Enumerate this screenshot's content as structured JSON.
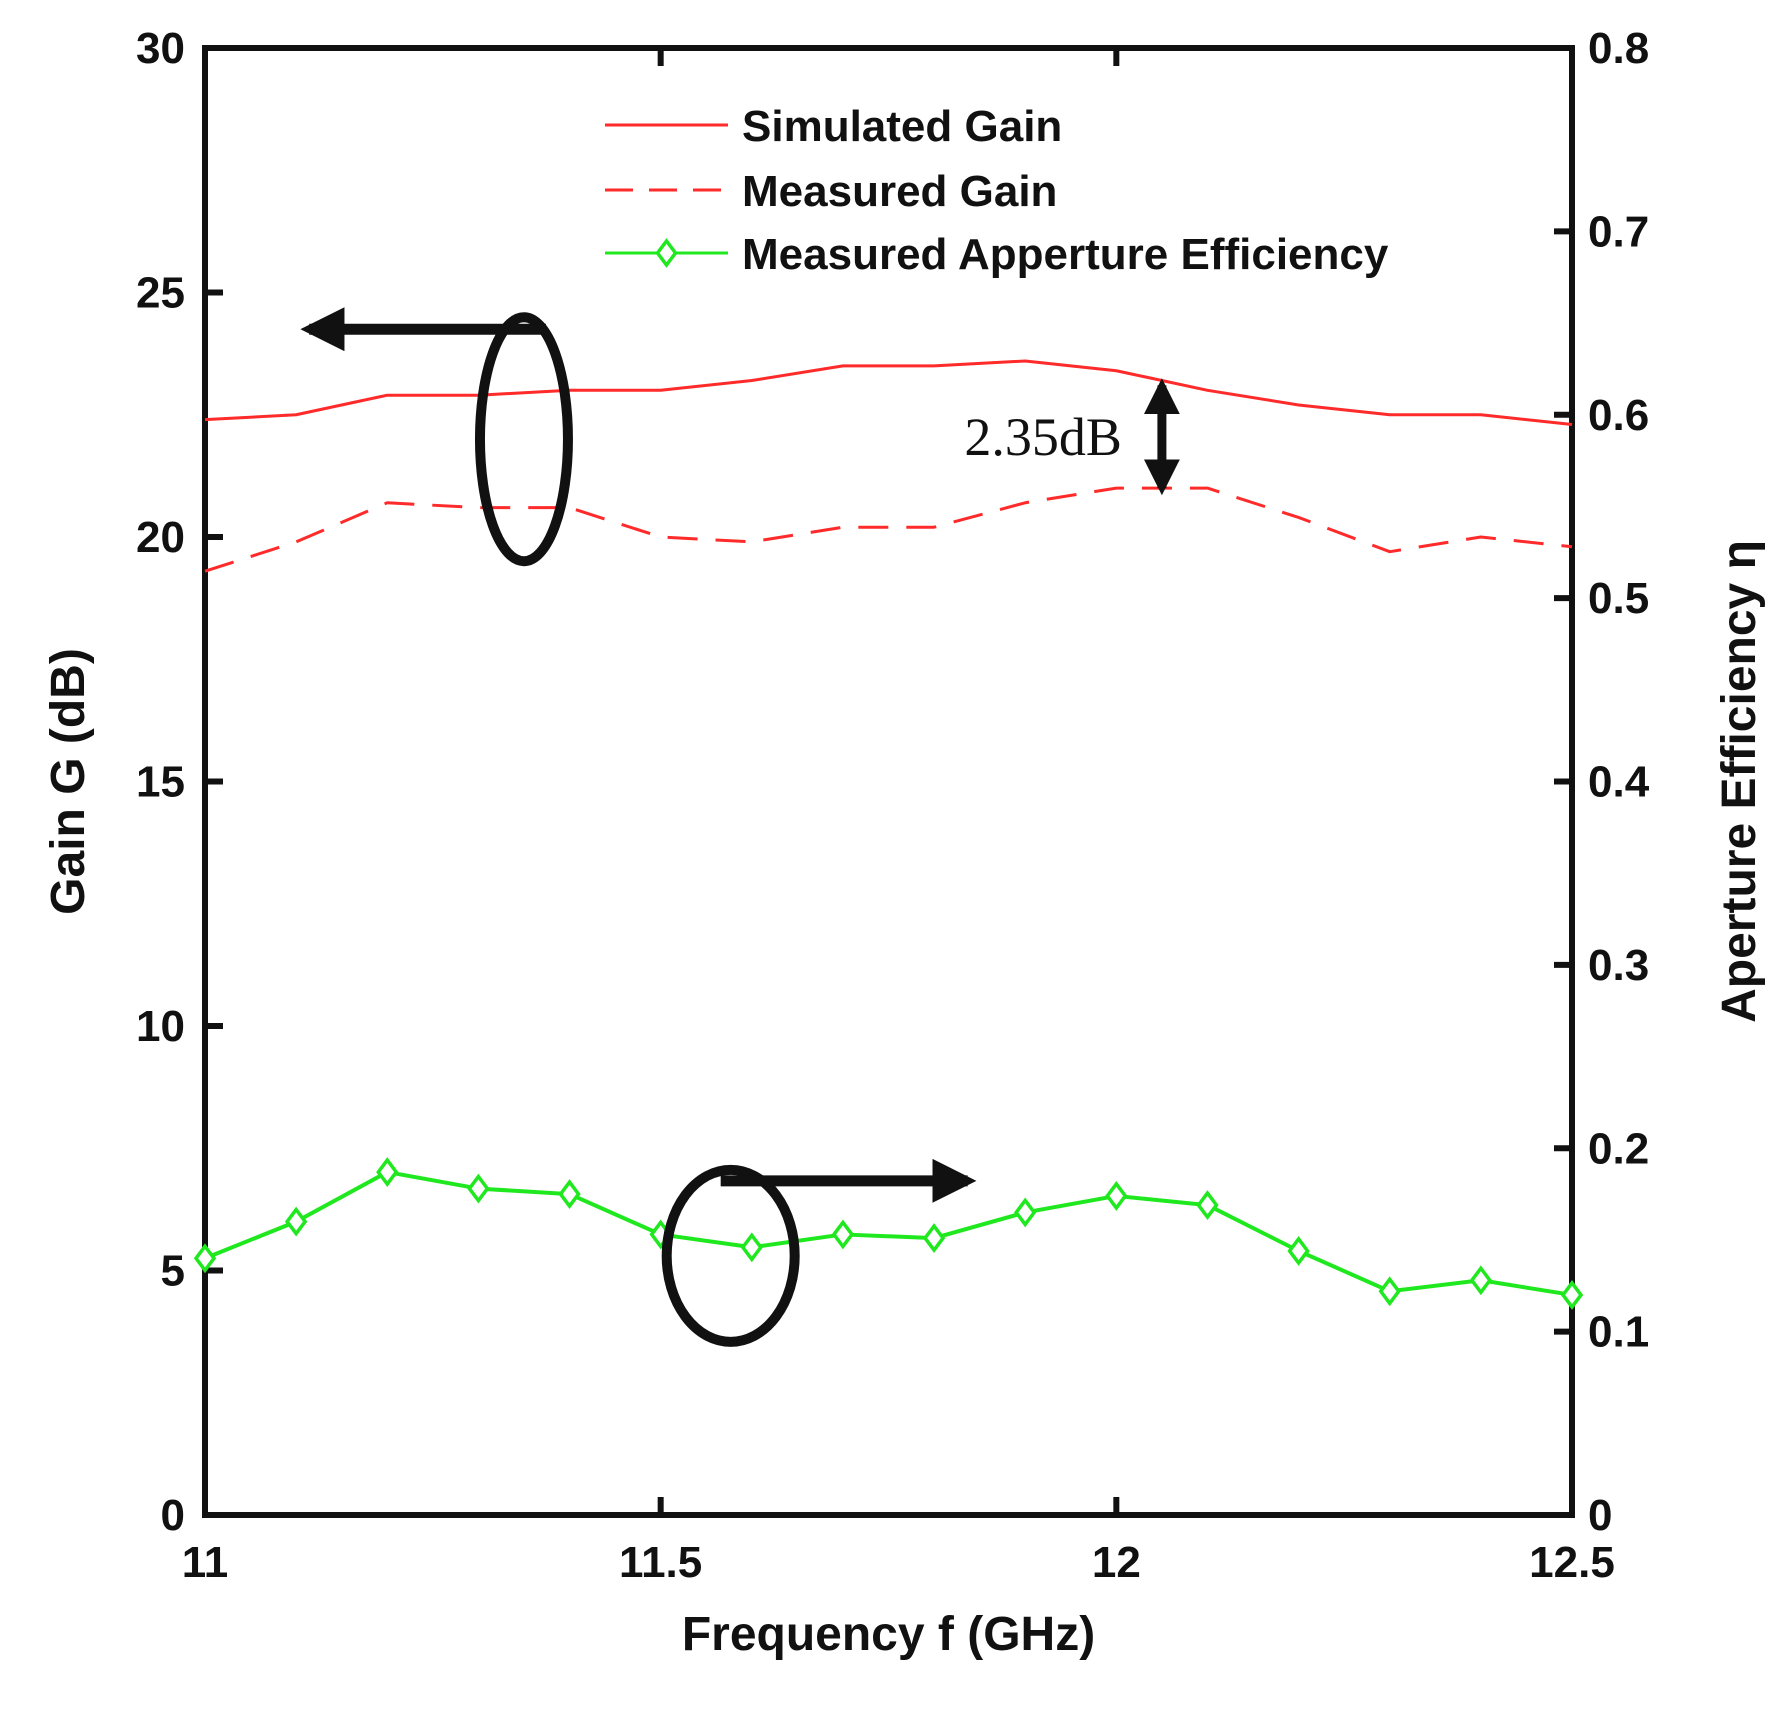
{
  "chart_data": {
    "type": "line",
    "title": "",
    "xlabel": "Frequency f (GHz)",
    "ylabel_left": "Gain G (dB)",
    "ylabel_right": "Aperture Efficiency η",
    "xlim": [
      11,
      12.5
    ],
    "ylim_left": [
      0,
      30
    ],
    "ylim_right": [
      0,
      0.8
    ],
    "x_ticks": [
      "11",
      "11.5",
      "12",
      "12.5"
    ],
    "y_left_ticks": [
      "0",
      "5",
      "10",
      "15",
      "20",
      "25",
      "30"
    ],
    "y_right_ticks": [
      "0",
      "0.1",
      "0.2",
      "0.3",
      "0.4",
      "0.5",
      "0.6",
      "0.7",
      "0.8"
    ],
    "legend_position": "top-center",
    "series": [
      {
        "name": "Simulated Gain",
        "axis": "left",
        "style": "solid",
        "color": "#ff2a2a",
        "x": [
          11.0,
          11.1,
          11.2,
          11.3,
          11.4,
          11.5,
          11.6,
          11.7,
          11.8,
          11.9,
          12.0,
          12.1,
          12.2,
          12.3,
          12.4,
          12.5
        ],
        "values": [
          22.4,
          22.5,
          22.9,
          22.9,
          23.0,
          23.0,
          23.2,
          23.5,
          23.5,
          23.6,
          23.4,
          23.0,
          22.7,
          22.5,
          22.5,
          22.3
        ]
      },
      {
        "name": "Measured Gain",
        "axis": "left",
        "style": "dashed",
        "color": "#ff2a2a",
        "x": [
          11.0,
          11.1,
          11.2,
          11.3,
          11.4,
          11.5,
          11.6,
          11.7,
          11.8,
          11.9,
          12.0,
          12.1,
          12.2,
          12.3,
          12.4,
          12.5
        ],
        "values": [
          19.3,
          19.9,
          20.7,
          20.6,
          20.6,
          20.0,
          19.9,
          20.2,
          20.2,
          20.7,
          21.0,
          21.0,
          20.4,
          19.7,
          20.0,
          19.8
        ]
      },
      {
        "name": "Measured Apperture Efficiency",
        "axis": "right",
        "style": "solid-diamond",
        "color": "#1fe81f",
        "x": [
          11.0,
          11.1,
          11.2,
          11.3,
          11.4,
          11.5,
          11.6,
          11.7,
          11.8,
          11.9,
          12.0,
          12.1,
          12.2,
          12.3,
          12.4,
          12.5
        ],
        "values": [
          0.14,
          0.16,
          0.187,
          0.178,
          0.175,
          0.153,
          0.146,
          0.153,
          0.151,
          0.165,
          0.174,
          0.169,
          0.144,
          0.122,
          0.128,
          0.12
        ]
      }
    ],
    "annotations": [
      {
        "text": "2.35dB",
        "type": "double-arrow",
        "x": 12.05,
        "y_from": 23.1,
        "y_to": 21.0
      },
      {
        "type": "ellipse-arrow",
        "direction": "left",
        "x": 11.35,
        "y": 22.0
      },
      {
        "type": "ellipse-arrow",
        "direction": "right",
        "x": 11.59,
        "y": 5.3
      }
    ]
  }
}
